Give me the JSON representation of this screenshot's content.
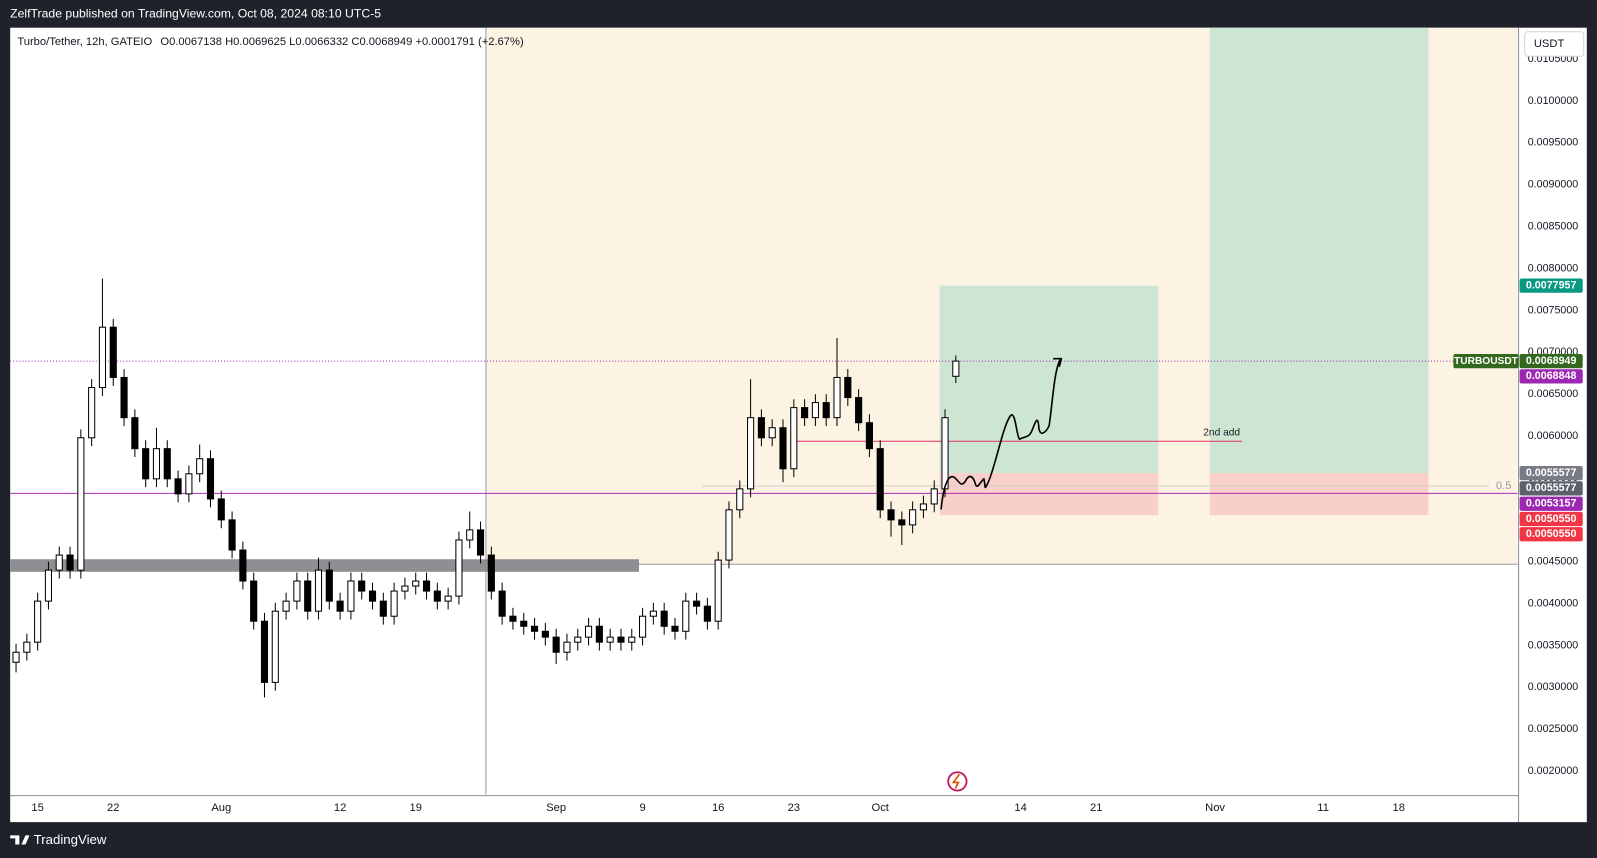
{
  "header": {
    "published": "ZelfTrade published on TradingView.com, Oct 08, 2024 08:10 UTC-5",
    "footer": "TradingView"
  },
  "chart_data": {
    "type": "candlestick",
    "title": "Turbo/Tether, 12h, GATEIO",
    "ohlc_legend": "O0.0067138 H0.0069625 L0.0066332 C0.0068949 +0.0001791 (+2.67%)",
    "currency": "USDT",
    "x": [
      "2024-07-13",
      "2024-07-14",
      "2024-07-15",
      "2024-07-16",
      "2024-07-17",
      "2024-07-18",
      "2024-07-19",
      "2024-07-20",
      "2024-07-21",
      "2024-07-22",
      "2024-07-23",
      "2024-07-24",
      "2024-07-25",
      "2024-07-26",
      "2024-07-27",
      "2024-07-28",
      "2024-07-29",
      "2024-07-30",
      "2024-07-31",
      "2024-08-01",
      "2024-08-02",
      "2024-08-03",
      "2024-08-04",
      "2024-08-05",
      "2024-08-06",
      "2024-08-07",
      "2024-08-08",
      "2024-08-09",
      "2024-08-10",
      "2024-08-11",
      "2024-08-12",
      "2024-08-13",
      "2024-08-14",
      "2024-08-15",
      "2024-08-16",
      "2024-08-17",
      "2024-08-18",
      "2024-08-19",
      "2024-08-20",
      "2024-08-21",
      "2024-08-22",
      "2024-08-23",
      "2024-08-24",
      "2024-08-25",
      "2024-08-26",
      "2024-08-27",
      "2024-08-28",
      "2024-08-29",
      "2024-08-30",
      "2024-08-31",
      "2024-09-01",
      "2024-09-02",
      "2024-09-03",
      "2024-09-04",
      "2024-09-05",
      "2024-09-06",
      "2024-09-07",
      "2024-09-08",
      "2024-09-09",
      "2024-09-10",
      "2024-09-11",
      "2024-09-12",
      "2024-09-13",
      "2024-09-14",
      "2024-09-15",
      "2024-09-16",
      "2024-09-17",
      "2024-09-18",
      "2024-09-19",
      "2024-09-20",
      "2024-09-21",
      "2024-09-22",
      "2024-09-23",
      "2024-09-24",
      "2024-09-25",
      "2024-09-26",
      "2024-09-27",
      "2024-09-28",
      "2024-09-29",
      "2024-09-30",
      "2024-10-01",
      "2024-10-02",
      "2024-10-03",
      "2024-10-04",
      "2024-10-05",
      "2024-10-06",
      "2024-10-07",
      "2024-10-08"
    ],
    "open": [
      0.0033,
      0.00342,
      0.00354,
      0.00403,
      0.0044,
      0.00458,
      0.0044,
      0.00598,
      0.00658,
      0.0073,
      0.0067,
      0.00622,
      0.00585,
      0.00549,
      0.00585,
      0.00549,
      0.00531,
      0.00555,
      0.00573,
      0.00525,
      0.005,
      0.00464,
      0.00427,
      0.00379,
      0.00306,
      0.00391,
      0.00403,
      0.00427,
      0.00391,
      0.0044,
      0.00403,
      0.00391,
      0.00427,
      0.00415,
      0.00403,
      0.00385,
      0.00415,
      0.00421,
      0.00427,
      0.00415,
      0.00403,
      0.00409,
      0.00476,
      0.00488,
      0.00458,
      0.00415,
      0.00385,
      0.00379,
      0.00373,
      0.00367,
      0.0036,
      0.00342,
      0.00354,
      0.0036,
      0.00373,
      0.00354,
      0.0036,
      0.00354,
      0.0036,
      0.00385,
      0.00391,
      0.00373,
      0.00367,
      0.00403,
      0.00397,
      0.00379,
      0.00452,
      0.00512,
      0.00537,
      0.00622,
      0.00598,
      0.0061,
      0.00561,
      0.00634,
      0.00622,
      0.0064,
      0.00622,
      0.0067,
      0.00646,
      0.00616,
      0.00585,
      0.00512,
      0.005,
      0.00494,
      0.00512,
      0.00519,
      0.00537,
      0.0067138
    ],
    "high": [
      0.00352,
      0.00364,
      0.00413,
      0.0045,
      0.00468,
      0.00468,
      0.00608,
      0.00668,
      0.00788,
      0.0074,
      0.0068,
      0.00632,
      0.00595,
      0.0061,
      0.00595,
      0.00559,
      0.00565,
      0.0059,
      0.00583,
      0.00535,
      0.0051,
      0.00474,
      0.00437,
      0.00389,
      0.00401,
      0.00413,
      0.00437,
      0.00437,
      0.00455,
      0.0045,
      0.00413,
      0.00437,
      0.00437,
      0.00425,
      0.00413,
      0.00425,
      0.00431,
      0.00437,
      0.00437,
      0.00425,
      0.00419,
      0.00486,
      0.0051,
      0.00498,
      0.00468,
      0.00425,
      0.00395,
      0.00389,
      0.00383,
      0.00377,
      0.0037,
      0.00364,
      0.0037,
      0.00383,
      0.00383,
      0.0037,
      0.0037,
      0.0037,
      0.00395,
      0.00401,
      0.00401,
      0.00383,
      0.00413,
      0.00413,
      0.00407,
      0.00462,
      0.00522,
      0.00547,
      0.00668,
      0.00632,
      0.0062,
      0.0062,
      0.00644,
      0.00644,
      0.0065,
      0.0065,
      0.00717,
      0.0068,
      0.00656,
      0.00626,
      0.00595,
      0.00522,
      0.0051,
      0.00522,
      0.00529,
      0.00547,
      0.00632,
      0.0069625
    ],
    "low": [
      0.00318,
      0.00332,
      0.00344,
      0.00393,
      0.0043,
      0.0043,
      0.0043,
      0.00588,
      0.00648,
      0.0066,
      0.00612,
      0.00575,
      0.00539,
      0.00539,
      0.00539,
      0.00521,
      0.00521,
      0.00545,
      0.00515,
      0.0049,
      0.00454,
      0.00417,
      0.00369,
      0.00288,
      0.00296,
      0.00381,
      0.00393,
      0.00381,
      0.00381,
      0.00393,
      0.00381,
      0.00381,
      0.00405,
      0.00393,
      0.00375,
      0.00375,
      0.00405,
      0.00411,
      0.00405,
      0.00393,
      0.00393,
      0.00399,
      0.00466,
      0.00448,
      0.00405,
      0.00375,
      0.00369,
      0.00363,
      0.00357,
      0.0035,
      0.00328,
      0.00332,
      0.00344,
      0.0035,
      0.00344,
      0.00344,
      0.00344,
      0.00344,
      0.0035,
      0.00375,
      0.00363,
      0.00357,
      0.00357,
      0.00387,
      0.00369,
      0.00369,
      0.00442,
      0.00502,
      0.00527,
      0.00588,
      0.00588,
      0.00545,
      0.00551,
      0.00612,
      0.00612,
      0.00612,
      0.00612,
      0.00636,
      0.00606,
      0.00575,
      0.00502,
      0.0048,
      0.0047,
      0.00484,
      0.00502,
      0.00509,
      0.00527,
      0.0066332
    ],
    "close": [
      0.00342,
      0.00354,
      0.00403,
      0.0044,
      0.00458,
      0.0044,
      0.00598,
      0.00658,
      0.0073,
      0.0067,
      0.00622,
      0.00585,
      0.00549,
      0.00585,
      0.00549,
      0.00531,
      0.00555,
      0.00573,
      0.00525,
      0.005,
      0.00464,
      0.00427,
      0.00379,
      0.00306,
      0.00391,
      0.00403,
      0.00427,
      0.00391,
      0.0044,
      0.00403,
      0.00391,
      0.00427,
      0.00415,
      0.00403,
      0.00385,
      0.00415,
      0.00421,
      0.00427,
      0.00415,
      0.00403,
      0.00409,
      0.00476,
      0.00488,
      0.00458,
      0.00415,
      0.00385,
      0.00379,
      0.00373,
      0.00367,
      0.0036,
      0.00342,
      0.00354,
      0.0036,
      0.00373,
      0.00354,
      0.0036,
      0.00354,
      0.0036,
      0.00385,
      0.00391,
      0.00373,
      0.00367,
      0.00403,
      0.00397,
      0.00379,
      0.00452,
      0.00512,
      0.00537,
      0.00622,
      0.00598,
      0.0061,
      0.00561,
      0.00634,
      0.00622,
      0.0064,
      0.00622,
      0.0067,
      0.00646,
      0.00616,
      0.00585,
      0.00512,
      0.005,
      0.00494,
      0.00512,
      0.00519,
      0.00537,
      0.00622,
      0.0068949
    ],
    "up_color": "#ffffff",
    "down_color": "#000000",
    "wick_color": "#000000",
    "xlim": [
      "2024-07-12T11:00:00Z",
      "2024-11-29T00:00:00Z"
    ],
    "xticks": [
      {
        "value": "2024-07-15T00:00:00Z",
        "label": "15"
      },
      {
        "value": "2024-07-22T00:00:00Z",
        "label": "22"
      },
      {
        "value": "2024-08-01T00:00:00Z",
        "label": "Aug"
      },
      {
        "value": "2024-08-12T00:00:00Z",
        "label": "12"
      },
      {
        "value": "2024-08-19T00:00:00Z",
        "label": "19"
      },
      {
        "value": "2024-09-01T00:00:00Z",
        "label": "Sep"
      },
      {
        "value": "2024-09-09T00:00:00Z",
        "label": "9"
      },
      {
        "value": "2024-09-16T00:00:00Z",
        "label": "16"
      },
      {
        "value": "2024-09-23T00:00:00Z",
        "label": "23"
      },
      {
        "value": "2024-10-01T00:00:00Z",
        "label": "Oct"
      },
      {
        "value": "2024-10-14T00:00:00Z",
        "label": "14"
      },
      {
        "value": "2024-10-21T00:00:00Z",
        "label": "21"
      },
      {
        "value": "2024-11-01T00:00:00Z",
        "label": "Nov"
      },
      {
        "value": "2024-11-11T00:00:00Z",
        "label": "11"
      },
      {
        "value": "2024-11-18T00:00:00Z",
        "label": "18"
      }
    ],
    "ylim": [
      0.00172,
      0.010875
    ],
    "yticks": [
      {
        "value": 0.002,
        "label": "0.0020000"
      },
      {
        "value": 0.0025,
        "label": "0.0025000"
      },
      {
        "value": 0.003,
        "label": "0.0030000"
      },
      {
        "value": 0.0035,
        "label": "0.0035000"
      },
      {
        "value": 0.004,
        "label": "0.0040000"
      },
      {
        "value": 0.0045,
        "label": "0.0045000"
      },
      {
        "value": 0.005,
        "label": "0.0050000"
      },
      {
        "value": 0.0055,
        "label": "0.0055000"
      },
      {
        "value": 0.006,
        "label": "0.0060000"
      },
      {
        "value": 0.0065,
        "label": "0.0065000"
      },
      {
        "value": 0.007,
        "label": "0.0070000"
      },
      {
        "value": 0.0075,
        "label": "0.0075000"
      },
      {
        "value": 0.008,
        "label": "0.0080000"
      },
      {
        "value": 0.0085,
        "label": "0.0085000"
      },
      {
        "value": 0.009,
        "label": "0.0090000"
      },
      {
        "value": 0.0095,
        "label": "0.0095000"
      },
      {
        "value": 0.01,
        "label": "0.0100000"
      },
      {
        "value": 0.0105,
        "label": "0.0105000"
      }
    ],
    "grid": false,
    "range_box": {
      "start": "2024-08-25T12:00:00Z",
      "bottom": 0.00447,
      "color": "#fdf3e3"
    },
    "zone": {
      "end": "2024-09-08T16:00:00Z",
      "top": 0.00453,
      "bottom": 0.00438,
      "color": "#8e8e93"
    },
    "horizontal_lines": [
      {
        "value": 0.0068949,
        "color": "#9c27b0",
        "style": "dotted"
      },
      {
        "value": 0.0053157,
        "color": "#b02cc0"
      },
      {
        "value": 0.005404,
        "color": "#cfcfcf",
        "start": "2024-09-14T12:00:00Z",
        "label": "0.5"
      },
      {
        "value": 0.005939,
        "color": "#e0316b",
        "start": "2024-09-22T18:00:00Z",
        "end": "2024-11-03T12:00:00Z",
        "label": "2nd add"
      }
    ],
    "positions": [
      {
        "start": "2024-10-06T12:00:00Z",
        "end": "2024-10-26T18:00:00Z",
        "entry": 0.0055577,
        "stop": 0.005055,
        "target": 0.0077957
      },
      {
        "start": "2024-10-31T12:00:00Z",
        "end": "2024-11-20T18:00:00Z",
        "entry": 0.0055577,
        "stop": 0.005055,
        "target": 0.011
      }
    ],
    "profit_color": "#cde5d3",
    "loss_color": "#f8cfc9",
    "price_labels": [
      {
        "value": 0.0077957,
        "label": "0.0077957",
        "color": "#089981"
      },
      {
        "value": 0.0068949,
        "label": "0.0068949",
        "color": "#33691e",
        "symbol": "TURBOUSDT"
      },
      {
        "value": 0.0068848,
        "label": "0.0068848",
        "color": "#9c27b0"
      },
      {
        "value": 0.0055577,
        "label": "0.0055577",
        "color": "#787b86"
      },
      {
        "value": 0.0055577,
        "label": "0.0055577",
        "color": "#5d606b"
      },
      {
        "value": 0.0053157,
        "label": "0.0053157",
        "color": "#9c27b0"
      },
      {
        "value": 0.005055,
        "label": "0.0050550",
        "color": "#f23645"
      },
      {
        "value": 0.005055,
        "label": "0.0050550",
        "color": "#f23645"
      }
    ]
  }
}
